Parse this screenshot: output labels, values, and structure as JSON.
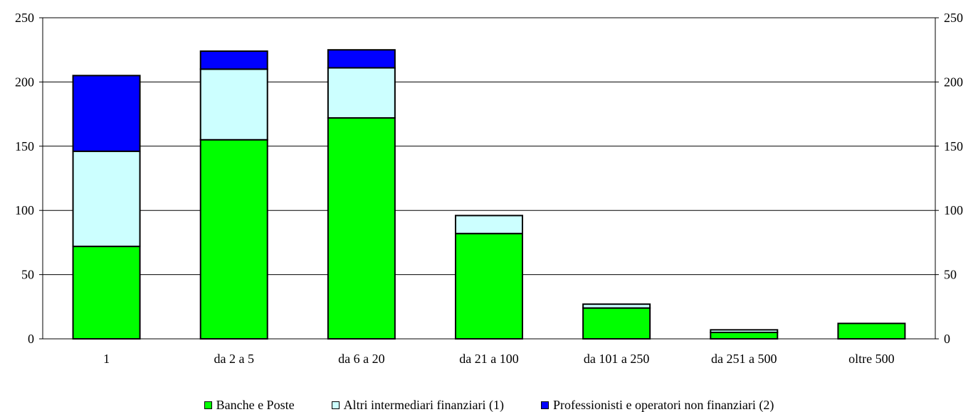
{
  "chart_data": {
    "type": "bar",
    "stacked": true,
    "title": "",
    "xlabel": "",
    "ylabel": "",
    "ylim": [
      0,
      250
    ],
    "yticks": [
      0,
      50,
      100,
      150,
      200,
      250
    ],
    "grid": true,
    "legend_position": "bottom",
    "secondary_axis": true,
    "categories": [
      "1",
      "da 2 a 5",
      "da 6 a 20",
      "da 21 a 100",
      "da 101 a 250",
      "da 251 a 500",
      "oltre 500"
    ],
    "series": [
      {
        "name": "Banche e Poste",
        "color": "#00ff00",
        "values": [
          72,
          155,
          172,
          82,
          24,
          5,
          12
        ]
      },
      {
        "name": "Altri intermediari finanziari (1)",
        "color": "#ccffff",
        "values": [
          74,
          55,
          39,
          14,
          3,
          2,
          0
        ]
      },
      {
        "name": "Professionisti e operatori non finanziari (2)",
        "color": "#0000ff",
        "values": [
          59,
          14,
          14,
          0,
          0,
          0,
          0
        ]
      }
    ]
  }
}
